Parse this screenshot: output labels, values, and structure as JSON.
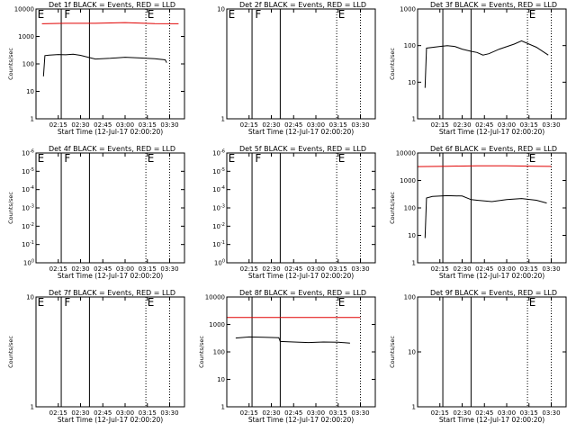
{
  "page": {
    "title": "",
    "colors": {
      "background": "#ffffff",
      "axis": "#000000",
      "events": "#000000",
      "lld": "#e00000"
    }
  },
  "x_ticks": [
    "02:15",
    "02:30",
    "02:45",
    "03:00",
    "03:15",
    "03:30"
  ],
  "chart_data": [
    {
      "type": "line",
      "title": "Det 1f BLACK = Events, RED = LLD",
      "xlabel": "Start Time (12-Jul-17 02:00:20)",
      "ylabel": "Counts/sec",
      "x_range": [
        "02:00",
        "03:40"
      ],
      "yscale": "log",
      "ylim": [
        1,
        10000
      ],
      "y_ticks": [
        "1",
        "10",
        "100",
        "1000",
        "10000"
      ],
      "vlines_solid": [
        "02:17",
        "02:36"
      ],
      "vlines_dotted": [
        "03:14",
        "03:30"
      ],
      "flags": [
        {
          "label": "E",
          "x": "02:01"
        },
        {
          "label": "F",
          "x": "02:19"
        },
        {
          "label": "E",
          "x": "03:15"
        }
      ],
      "series": [
        {
          "name": "Events",
          "color": "#000000",
          "x": [
            "02:05",
            "02:06",
            "02:09",
            "02:15",
            "02:20",
            "02:25",
            "02:30",
            "02:36",
            "02:40",
            "02:50",
            "03:00",
            "03:10",
            "03:20",
            "03:27",
            "03:28"
          ],
          "y": [
            35,
            200,
            210,
            220,
            215,
            225,
            205,
            170,
            150,
            160,
            175,
            165,
            155,
            140,
            110
          ]
        },
        {
          "name": "LLD",
          "color": "#e00000",
          "x": [
            "02:04",
            "02:20",
            "02:40",
            "03:00",
            "03:20",
            "03:36"
          ],
          "y": [
            2900,
            3000,
            3000,
            3200,
            2950,
            2900
          ]
        }
      ]
    },
    {
      "type": "line",
      "title": "Det 2f BLACK = Events, RED = LLD",
      "xlabel": "Start Time (12-Jul-17 02:00:20)",
      "ylabel": "",
      "x_range": [
        "02:00",
        "03:40"
      ],
      "yscale": "log",
      "ylim": [
        1,
        10
      ],
      "y_ticks": [
        "1",
        "10"
      ],
      "vlines_solid": [
        "02:17",
        "02:36"
      ],
      "vlines_dotted": [
        "03:14",
        "03:30"
      ],
      "flags": [
        {
          "label": "E",
          "x": "02:01"
        },
        {
          "label": "F",
          "x": "02:19"
        },
        {
          "label": "E",
          "x": "03:15"
        }
      ],
      "series": []
    },
    {
      "type": "line",
      "title": "Det 3f BLACK = Events, RED = LLD",
      "xlabel": "Start Time (12-Jul-17 02:00:20)",
      "ylabel": "Counts/sec",
      "x_range": [
        "02:00",
        "03:40"
      ],
      "yscale": "log",
      "ylim": [
        1,
        1000
      ],
      "y_ticks": [
        "1",
        "10",
        "100",
        "1000"
      ],
      "vlines_solid": [
        "02:17",
        "02:36"
      ],
      "vlines_dotted": [
        "03:14",
        "03:30"
      ],
      "flags": [
        {
          "label": "E",
          "x": "03:15"
        }
      ],
      "series": [
        {
          "name": "Events",
          "color": "#000000",
          "x": [
            "02:05",
            "02:06",
            "02:15",
            "02:20",
            "02:25",
            "02:30",
            "02:36",
            "02:40",
            "02:44",
            "02:48",
            "02:55",
            "03:05",
            "03:10",
            "03:20",
            "03:28"
          ],
          "y": [
            7,
            85,
            95,
            100,
            95,
            80,
            70,
            65,
            55,
            60,
            80,
            110,
            135,
            90,
            55
          ]
        }
      ]
    },
    {
      "type": "line",
      "title": "Det 4f BLACK = Events, RED = LLD",
      "xlabel": "Start Time (12-Jul-17 02:00:20)",
      "ylabel": "Counts/sec",
      "x_range": [
        "02:00",
        "03:40"
      ],
      "yscale": "log",
      "ylim": [
        1,
        1e-06
      ],
      "y_ticks": [
        "10^0",
        "10^-1",
        "10^-2",
        "10^-3",
        "10^-4",
        "10^-5",
        "10^-6"
      ],
      "vlines_solid": [
        "02:17",
        "02:36"
      ],
      "vlines_dotted": [
        "03:14",
        "03:30"
      ],
      "flags": [
        {
          "label": "E",
          "x": "02:01"
        },
        {
          "label": "F",
          "x": "02:19"
        },
        {
          "label": "E",
          "x": "03:15"
        }
      ],
      "series": []
    },
    {
      "type": "line",
      "title": "Det 5f BLACK = Events, RED = LLD",
      "xlabel": "Start Time (12-Jul-17 02:00:20)",
      "ylabel": "",
      "x_range": [
        "02:00",
        "03:40"
      ],
      "yscale": "log",
      "ylim": [
        1,
        1e-06
      ],
      "y_ticks": [
        "10^0",
        "10^-1",
        "10^-2",
        "10^-3",
        "10^-4",
        "10^-5",
        "10^-6"
      ],
      "vlines_solid": [
        "02:17",
        "02:36"
      ],
      "vlines_dotted": [
        "03:14",
        "03:30"
      ],
      "flags": [
        {
          "label": "E",
          "x": "02:01"
        },
        {
          "label": "F",
          "x": "02:19"
        },
        {
          "label": "E",
          "x": "03:15"
        }
      ],
      "series": []
    },
    {
      "type": "line",
      "title": "Det 6f BLACK = Events, RED = LLD",
      "xlabel": "Start Time (12-Jul-17 02:00:20)",
      "ylabel": "Counts/sec",
      "x_range": [
        "02:00",
        "03:40"
      ],
      "yscale": "log",
      "ylim": [
        1,
        10000
      ],
      "y_ticks": [
        "1",
        "10",
        "100",
        "1000",
        "10000"
      ],
      "vlines_solid": [
        "02:17",
        "02:36"
      ],
      "vlines_dotted": [
        "03:14",
        "03:30"
      ],
      "flags": [
        {
          "label": "E",
          "x": "03:15"
        }
      ],
      "series": [
        {
          "name": "Events",
          "color": "#000000",
          "x": [
            "02:05",
            "02:06",
            "02:10",
            "02:20",
            "02:30",
            "02:36",
            "02:40",
            "02:50",
            "03:00",
            "03:10",
            "03:20",
            "03:27"
          ],
          "y": [
            8,
            230,
            260,
            280,
            270,
            200,
            190,
            170,
            200,
            220,
            190,
            150
          ]
        },
        {
          "name": "LLD",
          "color": "#e00000",
          "x": [
            "02:00",
            "02:20",
            "02:40",
            "03:00",
            "03:20",
            "03:30"
          ],
          "y": [
            3200,
            3300,
            3400,
            3400,
            3300,
            3250
          ]
        }
      ]
    },
    {
      "type": "line",
      "title": "Det 7f BLACK = Events, RED = LLD",
      "xlabel": "Start Time (12-Jul-17 02:00:20)",
      "ylabel": "Counts/sec",
      "x_range": [
        "02:00",
        "03:40"
      ],
      "yscale": "log",
      "ylim": [
        1,
        10
      ],
      "y_ticks": [
        "1",
        "10"
      ],
      "vlines_solid": [
        "02:17",
        "02:36"
      ],
      "vlines_dotted": [
        "03:14",
        "03:30"
      ],
      "flags": [
        {
          "label": "E",
          "x": "02:01"
        },
        {
          "label": "F",
          "x": "02:19"
        },
        {
          "label": "E",
          "x": "03:15"
        }
      ],
      "series": []
    },
    {
      "type": "line",
      "title": "Det 8f BLACK = Events, RED = LLD",
      "xlabel": "Start Time (12-Jul-17 02:00:20)",
      "ylabel": "Counts/sec",
      "x_range": [
        "02:00",
        "03:40"
      ],
      "yscale": "log",
      "ylim": [
        1,
        10000
      ],
      "y_ticks": [
        "1",
        "10",
        "100",
        "1000",
        "10000"
      ],
      "vlines_solid": [
        "02:17",
        "02:36"
      ],
      "vlines_dotted": [
        "03:14",
        "03:30"
      ],
      "flags": [
        {
          "label": "E",
          "x": "03:15"
        }
      ],
      "series": [
        {
          "name": "Events",
          "color": "#000000",
          "x": [
            "02:06",
            "02:15",
            "02:25",
            "02:35",
            "02:36",
            "02:45",
            "02:55",
            "03:05",
            "03:15",
            "03:23"
          ],
          "y": [
            320,
            350,
            340,
            330,
            240,
            230,
            220,
            230,
            225,
            210
          ]
        },
        {
          "name": "LLD",
          "color": "#e00000",
          "x": [
            "02:00",
            "02:30",
            "03:00",
            "03:30"
          ],
          "y": [
            1800,
            1800,
            1800,
            1800
          ]
        }
      ]
    },
    {
      "type": "line",
      "title": "Det 9f BLACK = Events, RED = LLD",
      "xlabel": "Start Time (12-Jul-17 02:00:20)",
      "ylabel": "Counts/sec",
      "x_range": [
        "02:00",
        "03:40"
      ],
      "yscale": "log",
      "ylim": [
        1,
        100
      ],
      "y_ticks": [
        "1",
        "10",
        "100"
      ],
      "vlines_solid": [
        "02:17",
        "02:36"
      ],
      "vlines_dotted": [
        "03:14",
        "03:30"
      ],
      "flags": [
        {
          "label": "E",
          "x": "03:15"
        }
      ],
      "series": []
    }
  ]
}
